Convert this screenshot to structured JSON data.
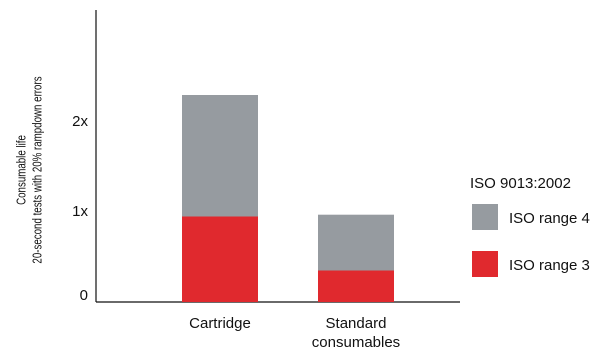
{
  "chart_data": {
    "type": "bar",
    "stacked": true,
    "title": "",
    "xlabel": "",
    "ylabel_lines": [
      "Consumable life",
      "20-second tests with 20% rampdown errors"
    ],
    "categories": [
      {
        "label_lines": [
          "Cartridge"
        ]
      },
      {
        "label_lines": [
          "Standard",
          "consumables"
        ]
      }
    ],
    "y_ticks": [
      {
        "value": 0,
        "label": "0"
      },
      {
        "value": 1,
        "label": "1x"
      },
      {
        "value": 2,
        "label": "2x"
      }
    ],
    "ylim": [
      0,
      3.1
    ],
    "series": [
      {
        "name": "ISO range 3",
        "color": "#e0292e",
        "values": [
          0.95,
          0.35
        ]
      },
      {
        "name": "ISO range 4",
        "color": "#969ba0",
        "values": [
          1.35,
          0.62
        ]
      }
    ],
    "legend": {
      "title": "ISO 9013:2002",
      "position": "right",
      "order": [
        1,
        0
      ]
    },
    "grid": false
  }
}
